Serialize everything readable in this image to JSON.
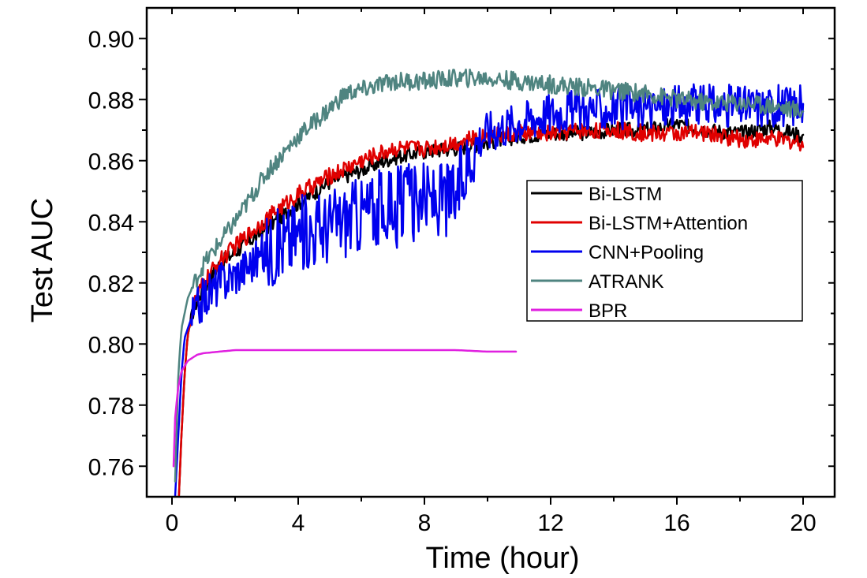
{
  "chart_data": {
    "type": "line",
    "title": "",
    "xlabel": "Time (hour)",
    "ylabel": "Test AUC",
    "xlim": [
      -0.8,
      21
    ],
    "ylim": [
      0.75,
      0.91
    ],
    "xticks": [
      0,
      4,
      8,
      12,
      16,
      20
    ],
    "xtick_labels": [
      "0",
      "4",
      "8",
      "12",
      "16",
      "20"
    ],
    "yticks": [
      0.76,
      0.78,
      0.8,
      0.82,
      0.84,
      0.86,
      0.88,
      0.9
    ],
    "ytick_labels": [
      "0.76",
      "0.78",
      "0.80",
      "0.82",
      "0.84",
      "0.86",
      "0.88",
      "0.90"
    ],
    "legend_position": "center-right",
    "series": [
      {
        "name": "Bi-LSTM",
        "color": "#000000",
        "noise": 0.0025,
        "x": [
          0.2,
          0.3,
          0.4,
          0.5,
          0.7,
          1,
          1.5,
          2,
          3,
          4,
          5,
          6,
          7,
          8,
          9,
          10,
          11,
          12,
          13,
          14,
          15,
          16,
          17,
          18,
          19,
          20
        ],
        "y": [
          0.745,
          0.77,
          0.79,
          0.803,
          0.812,
          0.818,
          0.826,
          0.83,
          0.838,
          0.846,
          0.853,
          0.857,
          0.861,
          0.863,
          0.864,
          0.866,
          0.868,
          0.869,
          0.869,
          0.87,
          0.87,
          0.872,
          0.87,
          0.869,
          0.871,
          0.868
        ]
      },
      {
        "name": "Bi-LSTM+Attention",
        "color": "#e00000",
        "noise": 0.0028,
        "x": [
          0.2,
          0.3,
          0.4,
          0.5,
          0.7,
          1,
          1.5,
          2,
          3,
          4,
          5,
          6,
          7,
          8,
          9,
          10,
          11,
          12,
          13,
          14,
          15,
          16,
          17,
          18,
          19,
          20
        ],
        "y": [
          0.745,
          0.77,
          0.79,
          0.803,
          0.813,
          0.82,
          0.827,
          0.832,
          0.841,
          0.849,
          0.855,
          0.86,
          0.864,
          0.864,
          0.866,
          0.868,
          0.869,
          0.869,
          0.87,
          0.87,
          0.869,
          0.869,
          0.869,
          0.867,
          0.867,
          0.866
        ]
      },
      {
        "name": "CNN+Pooling",
        "color": "#0000ee",
        "noise": 0.007,
        "x": [
          0.1,
          0.2,
          0.3,
          0.4,
          0.6,
          1,
          1.5,
          2,
          3,
          4,
          5,
          6,
          7,
          8,
          9,
          9.6,
          10,
          11,
          12,
          13,
          14,
          15,
          16,
          17,
          18,
          19,
          20
        ],
        "y": [
          0.75,
          0.77,
          0.79,
          0.802,
          0.808,
          0.815,
          0.82,
          0.823,
          0.83,
          0.836,
          0.839,
          0.843,
          0.846,
          0.847,
          0.848,
          0.866,
          0.87,
          0.873,
          0.876,
          0.877,
          0.877,
          0.877,
          0.878,
          0.878,
          0.878,
          0.878,
          0.878
        ]
      },
      {
        "name": "ATRANK",
        "color": "#4f8480",
        "noise": 0.003,
        "x": [
          0.1,
          0.2,
          0.3,
          0.5,
          0.8,
          1,
          1.5,
          2,
          3,
          4,
          5,
          5.5,
          6,
          7,
          8,
          9,
          10,
          11,
          12,
          13,
          14,
          15,
          16,
          17,
          18,
          19,
          20
        ],
        "y": [
          0.755,
          0.79,
          0.805,
          0.815,
          0.822,
          0.826,
          0.833,
          0.84,
          0.856,
          0.868,
          0.877,
          0.882,
          0.883,
          0.886,
          0.886,
          0.887,
          0.887,
          0.886,
          0.885,
          0.884,
          0.883,
          0.882,
          0.88,
          0.879,
          0.879,
          0.878,
          0.876
        ]
      },
      {
        "name": "BPR",
        "color": "#e020e0",
        "noise": 0,
        "x": [
          0.05,
          0.1,
          0.2,
          0.3,
          0.5,
          0.8,
          1,
          1.5,
          2,
          2.5,
          3,
          4,
          5,
          6,
          7,
          8,
          9,
          10,
          10.9
        ],
        "y": [
          0.76,
          0.776,
          0.786,
          0.791,
          0.7945,
          0.7965,
          0.797,
          0.7975,
          0.798,
          0.798,
          0.798,
          0.798,
          0.798,
          0.798,
          0.798,
          0.798,
          0.798,
          0.7975,
          0.7975
        ]
      }
    ]
  }
}
